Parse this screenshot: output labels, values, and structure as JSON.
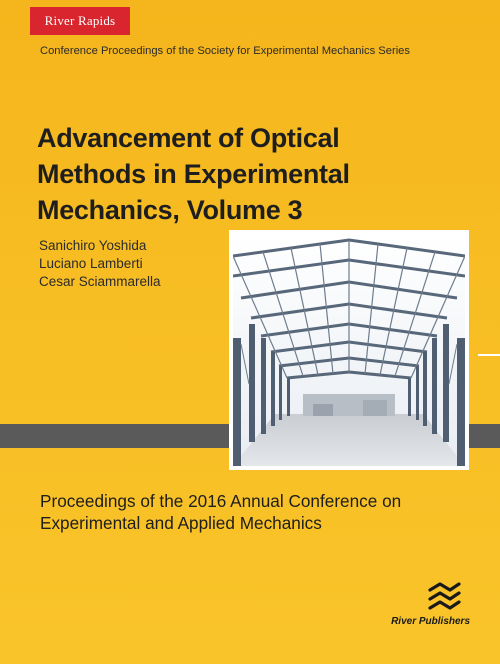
{
  "cover": {
    "imprint": "River Rapids",
    "series": "Conference Proceedings of the Society for Experimental Mechanics Series",
    "title_lines": [
      "Advancement of Optical",
      "Methods in Experimental",
      "Mechanics, Volume 3"
    ],
    "authors": [
      "Sanichiro Yoshida",
      "Luciano Lamberti",
      "Cesar Sciammarella"
    ],
    "proceedings_lines": [
      "Proceedings of the 2016 Annual Conference on",
      "Experimental and Applied Mechanics"
    ],
    "publisher": "River Publishers",
    "publisher_logo_icon": "river-waves-icon",
    "cover_image": "steel-frame-building-photo"
  },
  "colors": {
    "background": "#f7bd22",
    "badge": "#d9262e",
    "gray_bar": "#5a5a5a"
  }
}
